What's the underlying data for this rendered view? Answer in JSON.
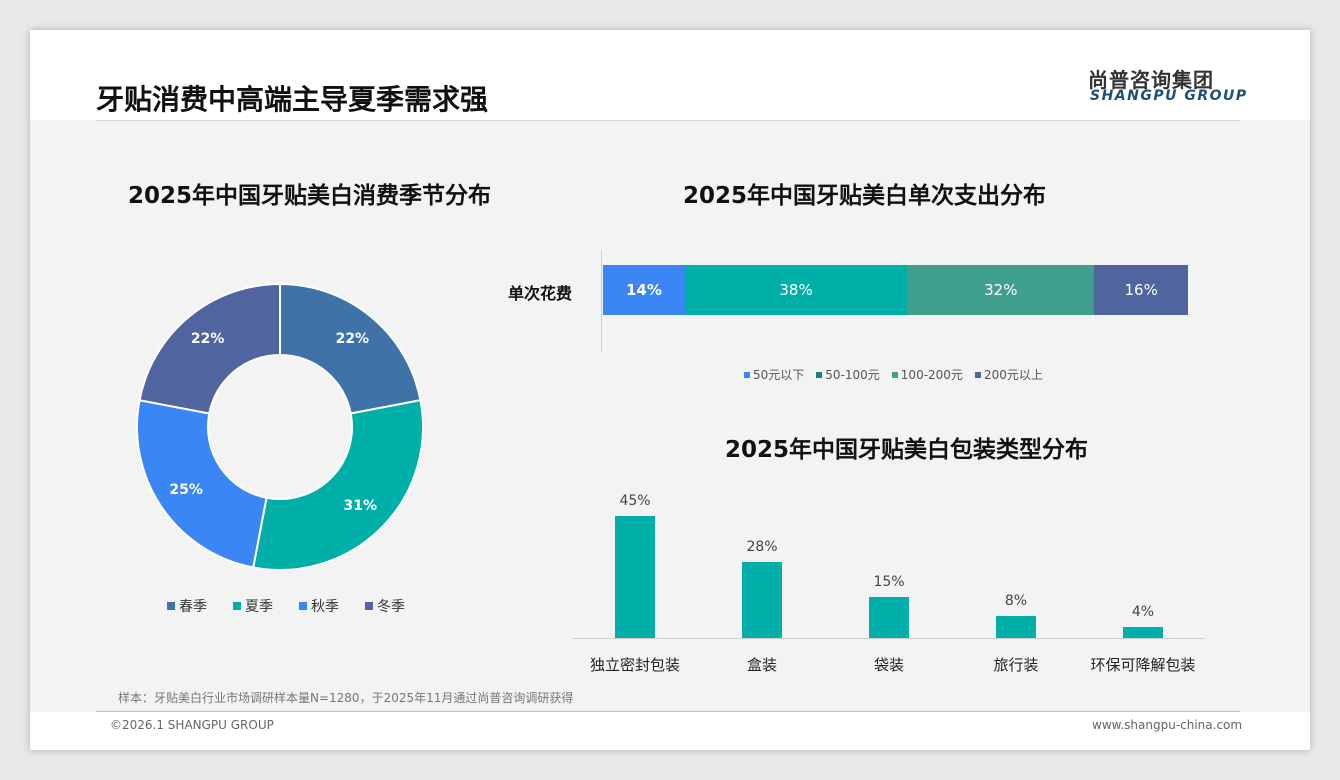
{
  "header": {
    "title": "牙贴消费中高端主导夏季需求强",
    "logo_cn": "尚普咨询集团",
    "logo_en": "SHANGPU GROUP"
  },
  "footer": {
    "note": "样本：牙贴美白行业市场调研样本量N=1280，于2025年11月通过尚普咨询调研获得",
    "copyright": "©2026.1 SHANGPU GROUP",
    "website": "www.shangpu-china.com"
  },
  "chart_data": [
    {
      "type": "pie",
      "title": "2025年中国牙贴美白消费季节分布",
      "donut": true,
      "categories": [
        "春季",
        "夏季",
        "秋季",
        "冬季"
      ],
      "values": [
        22,
        31,
        25,
        22
      ],
      "labels": [
        "22%",
        "31%",
        "25%",
        "22%"
      ],
      "colors": [
        "#3f72a8",
        "#00b0a8",
        "#3a86f5",
        "#5064a0"
      ],
      "legend": "bottom"
    },
    {
      "type": "bar",
      "stacked": true,
      "orientation": "horizontal",
      "title": "2025年中国牙贴美白单次支出分布",
      "categories": [
        "单次花费"
      ],
      "series": [
        {
          "name": "50元以下",
          "values": [
            14
          ],
          "label": "14%",
          "color": "#3a86f5"
        },
        {
          "name": "50-100元",
          "values": [
            38
          ],
          "label": "38%",
          "color": "#00b0a8"
        },
        {
          "name": "100-200元",
          "values": [
            32
          ],
          "label": "32%",
          "color": "#40a08e"
        },
        {
          "name": "200元以上",
          "values": [
            16
          ],
          "label": "16%",
          "color": "#5064a0"
        }
      ],
      "legend_colors": [
        "#3a86f5",
        "#1a7f8a",
        "#40a08e",
        "#5064a0"
      ],
      "legend": "bottom"
    },
    {
      "type": "bar",
      "title": "2025年中国牙贴美白包装类型分布",
      "categories": [
        "独立密封包装",
        "盒装",
        "袋装",
        "旅行装",
        "环保可降解包装"
      ],
      "values": [
        45,
        28,
        15,
        8,
        4
      ],
      "labels": [
        "45%",
        "28%",
        "15%",
        "8%",
        "4%"
      ],
      "color": "#00b0a8",
      "ylim": [
        0,
        45
      ]
    }
  ]
}
